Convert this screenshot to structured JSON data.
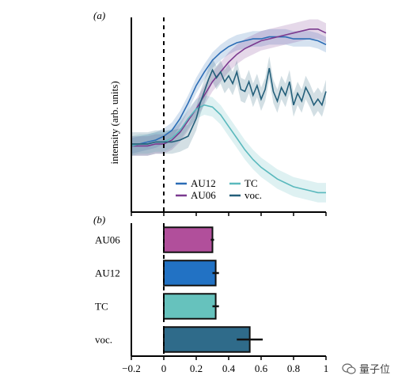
{
  "chart_data": [
    {
      "panel_label": "(a)",
      "type": "line",
      "ylabel": "intensity (arb. units)",
      "xlim": [
        -0.2,
        1.0
      ],
      "ylim": [
        0.0,
        1.0
      ],
      "legend_position": "bottom-right",
      "grid": false,
      "reference_line_x": 0,
      "series": [
        {
          "name": "AU12",
          "color": "#2b6cb5",
          "x": [
            -0.2,
            -0.15,
            -0.1,
            -0.05,
            0,
            0.05,
            0.1,
            0.15,
            0.2,
            0.25,
            0.3,
            0.35,
            0.4,
            0.45,
            0.5,
            0.55,
            0.6,
            0.65,
            0.7,
            0.75,
            0.8,
            0.85,
            0.9,
            0.95,
            1.0
          ],
          "y": [
            0.34,
            0.35,
            0.36,
            0.37,
            0.39,
            0.42,
            0.48,
            0.56,
            0.65,
            0.72,
            0.78,
            0.82,
            0.85,
            0.87,
            0.88,
            0.89,
            0.89,
            0.9,
            0.9,
            0.9,
            0.89,
            0.89,
            0.89,
            0.88,
            0.86
          ],
          "band": 0.04
        },
        {
          "name": "AU06",
          "color": "#7b3a8f",
          "x": [
            -0.2,
            -0.15,
            -0.1,
            -0.05,
            0,
            0.05,
            0.1,
            0.15,
            0.2,
            0.25,
            0.3,
            0.35,
            0.4,
            0.45,
            0.5,
            0.55,
            0.6,
            0.65,
            0.7,
            0.75,
            0.8,
            0.85,
            0.9,
            0.95,
            1.0
          ],
          "y": [
            0.34,
            0.34,
            0.34,
            0.35,
            0.35,
            0.37,
            0.41,
            0.47,
            0.53,
            0.6,
            0.67,
            0.72,
            0.77,
            0.81,
            0.84,
            0.86,
            0.88,
            0.89,
            0.9,
            0.91,
            0.92,
            0.93,
            0.94,
            0.94,
            0.92
          ],
          "band": 0.05
        },
        {
          "name": "TC",
          "color": "#5ab9bd",
          "x": [
            -0.2,
            -0.15,
            -0.1,
            -0.05,
            0,
            0.05,
            0.1,
            0.15,
            0.2,
            0.25,
            0.3,
            0.35,
            0.4,
            0.45,
            0.5,
            0.55,
            0.6,
            0.65,
            0.7,
            0.75,
            0.8,
            0.85,
            0.9,
            0.95,
            1.0
          ],
          "y": [
            0.34,
            0.35,
            0.35,
            0.36,
            0.36,
            0.38,
            0.42,
            0.48,
            0.53,
            0.55,
            0.54,
            0.5,
            0.44,
            0.38,
            0.32,
            0.27,
            0.23,
            0.2,
            0.17,
            0.15,
            0.13,
            0.12,
            0.11,
            0.1,
            0.1
          ],
          "band": 0.05
        },
        {
          "name": "voc.",
          "color": "#245f7a",
          "x": [
            -0.2,
            -0.15,
            -0.1,
            -0.05,
            0,
            0.05,
            0.1,
            0.15,
            0.2,
            0.225,
            0.25,
            0.275,
            0.3,
            0.325,
            0.35,
            0.375,
            0.4,
            0.425,
            0.45,
            0.475,
            0.5,
            0.525,
            0.55,
            0.575,
            0.6,
            0.625,
            0.65,
            0.675,
            0.7,
            0.725,
            0.75,
            0.775,
            0.8,
            0.825,
            0.85,
            0.875,
            0.9,
            0.925,
            0.95,
            0.975,
            1.0
          ],
          "y": [
            0.35,
            0.35,
            0.35,
            0.36,
            0.36,
            0.36,
            0.37,
            0.39,
            0.48,
            0.56,
            0.62,
            0.68,
            0.73,
            0.69,
            0.72,
            0.67,
            0.7,
            0.66,
            0.72,
            0.63,
            0.62,
            0.67,
            0.6,
            0.65,
            0.58,
            0.63,
            0.74,
            0.62,
            0.57,
            0.64,
            0.6,
            0.67,
            0.55,
            0.61,
            0.57,
            0.64,
            0.6,
            0.55,
            0.58,
            0.55,
            0.62
          ],
          "band": 0.06
        }
      ]
    },
    {
      "panel_label": "(b)",
      "type": "bar",
      "orientation": "horizontal",
      "categories": [
        "AU06",
        "AU12",
        "TC",
        "voc."
      ],
      "values": [
        0.3,
        0.32,
        0.32,
        0.53
      ],
      "errors": [
        0.01,
        0.02,
        0.02,
        0.08
      ],
      "colors": [
        "#b14f9b",
        "#2272c4",
        "#66c2bd",
        "#2f6b8a"
      ],
      "xlim": [
        -0.2,
        1.0
      ],
      "xticks": [
        "−0.2",
        "0",
        "0.2",
        "0.4",
        "0.6",
        "0.8",
        "1"
      ],
      "reference_line_x": 0
    }
  ],
  "watermark": {
    "text": "量子位"
  }
}
